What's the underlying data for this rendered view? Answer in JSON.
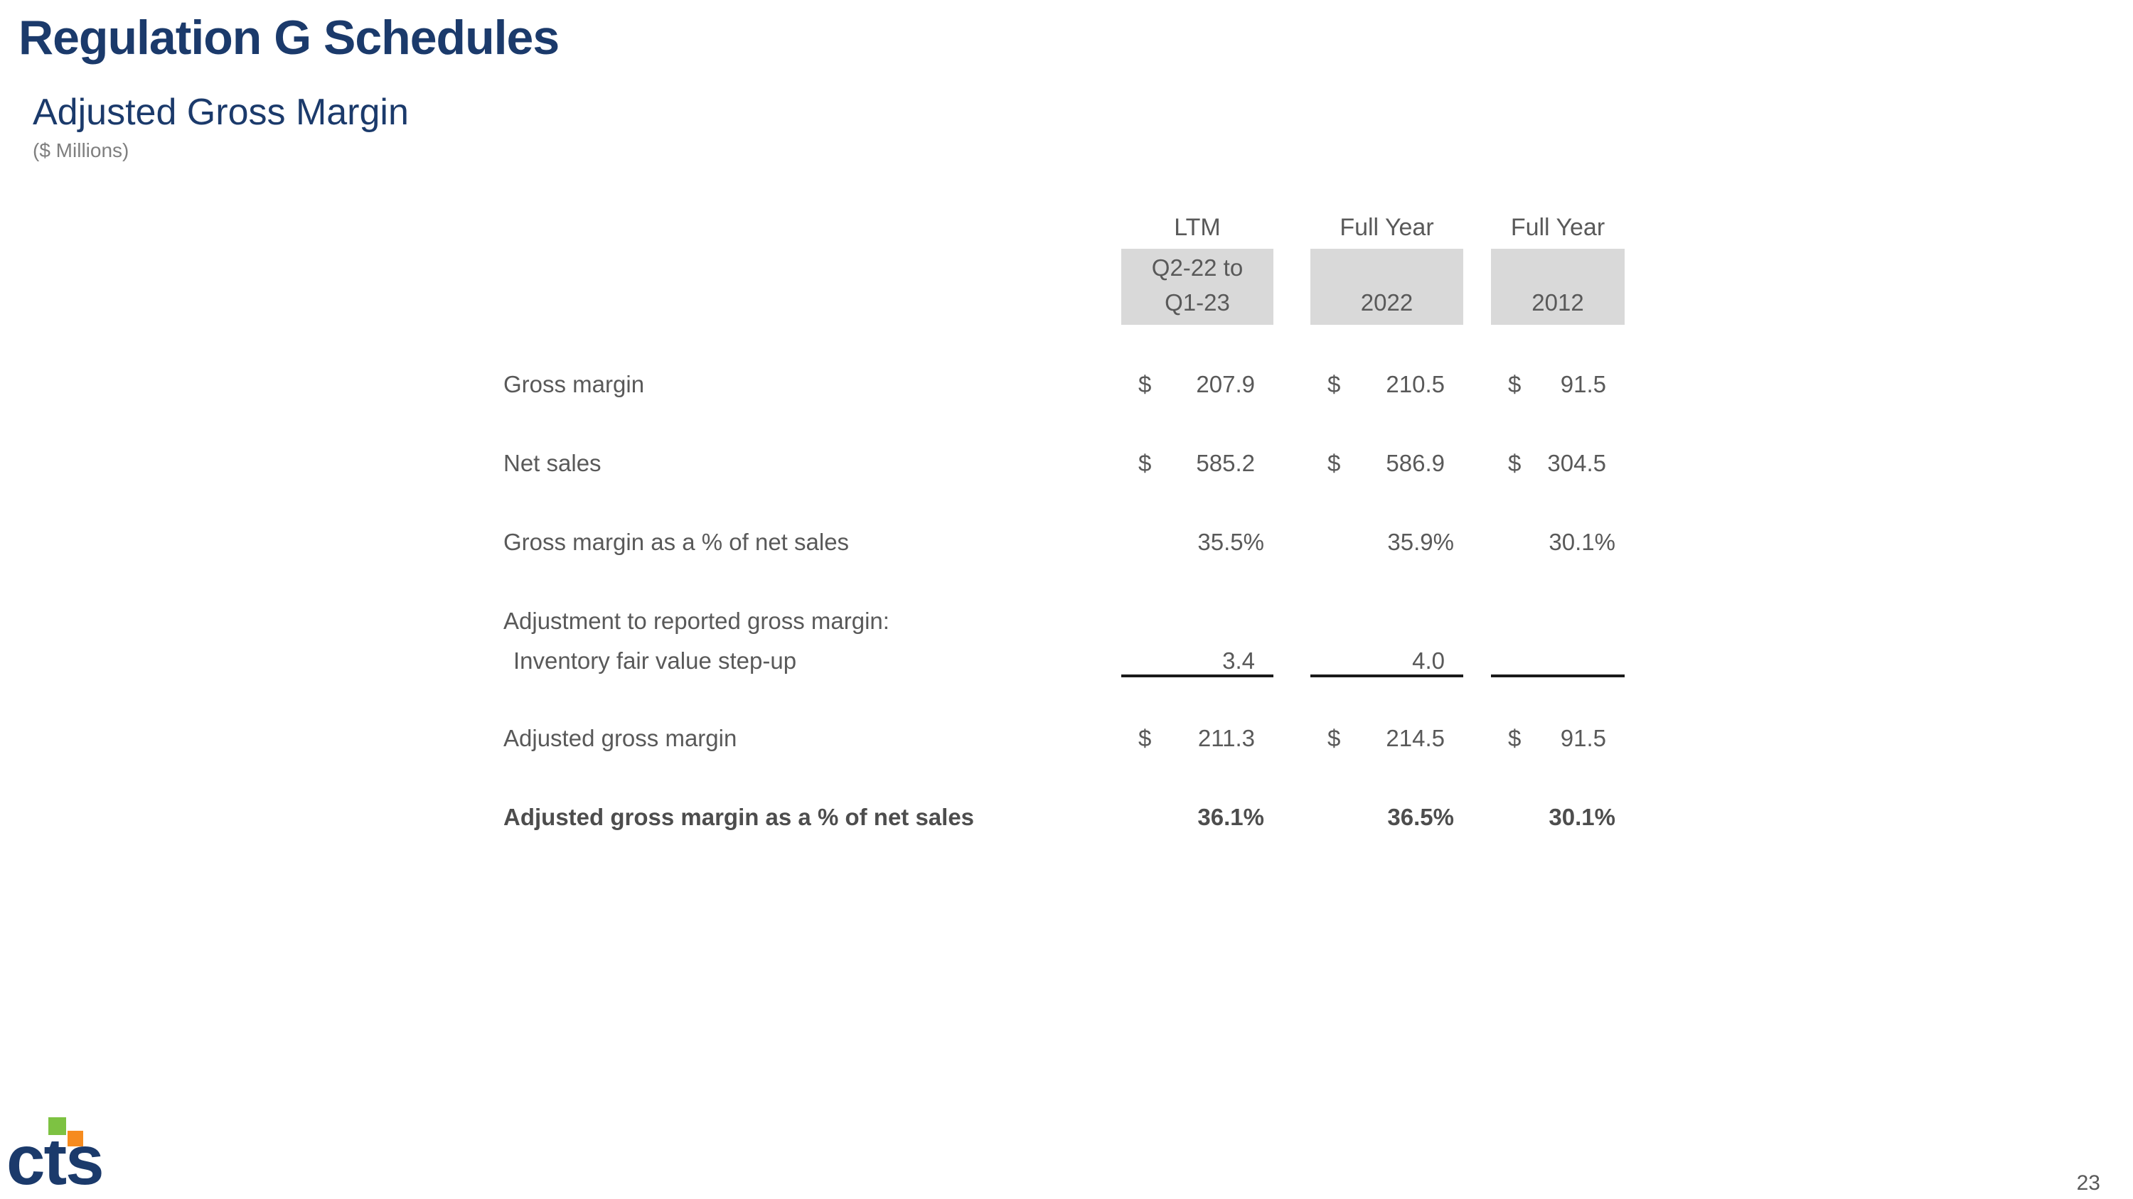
{
  "slide": {
    "title": "Regulation G Schedules",
    "subtitle": "Adjusted Gross Margin",
    "units_note": "($ Millions)",
    "page_number": "23"
  },
  "logo": {
    "text": "cts"
  },
  "colors": {
    "navy": "#1B3A6B",
    "text_gray": "#595959",
    "note_gray": "#7F7F7F",
    "box_gray": "#D9D9D9",
    "rule": "#1A1A1A",
    "logo_green": "#7DC242",
    "logo_orange": "#F68B1F"
  },
  "table": {
    "currency_symbol": "$",
    "column_headers": [
      {
        "period": "LTM",
        "line1": "Q2-22 to",
        "line2": "Q1-23"
      },
      {
        "period": "Full Year",
        "line1": "",
        "line2": "2022"
      },
      {
        "period": "Full Year",
        "line1": "",
        "line2": "2012"
      }
    ],
    "rows": [
      {
        "id": "gross-margin",
        "label": "Gross margin",
        "type": "currency",
        "values": [
          "207.9",
          "210.5",
          "91.5"
        ]
      },
      {
        "id": "net-sales",
        "label": "Net sales",
        "type": "currency",
        "values": [
          "585.2",
          "586.9",
          "304.5"
        ]
      },
      {
        "id": "gross-margin-pct",
        "label": "Gross margin as a % of net sales",
        "type": "percent",
        "values": [
          "35.5%",
          "35.9%",
          "30.1%"
        ]
      },
      {
        "id": "adjustment-header",
        "label": "Adjustment to reported gross margin:",
        "type": "label-only",
        "values": [
          "",
          "",
          ""
        ]
      },
      {
        "id": "inventory-step-up",
        "label": "Inventory fair value step-up",
        "type": "number",
        "indent": true,
        "underline_after": true,
        "values": [
          "3.4",
          "4.0",
          ""
        ]
      },
      {
        "id": "adjusted-gross-margin",
        "label": "Adjusted gross margin",
        "type": "currency",
        "values": [
          "211.3",
          "214.5",
          "91.5"
        ]
      },
      {
        "id": "adjusted-gross-margin-pct",
        "label": "Adjusted gross margin as a % of net sales",
        "type": "percent",
        "bold": true,
        "values": [
          "36.1%",
          "36.5%",
          "30.1%"
        ]
      }
    ]
  }
}
